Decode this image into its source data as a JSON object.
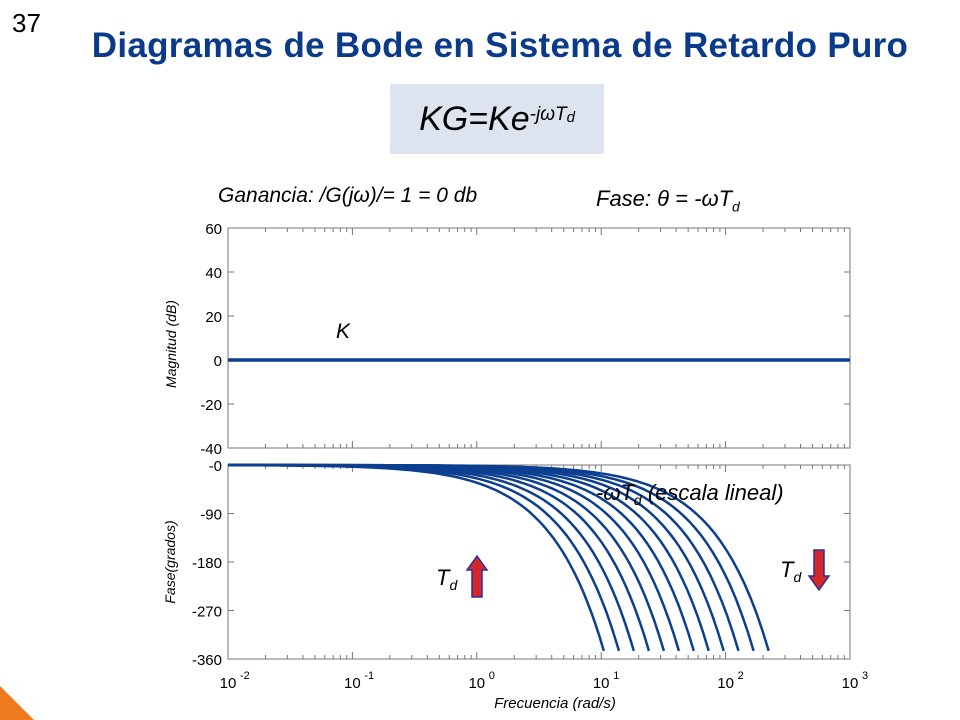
{
  "slide": {
    "number": "37",
    "title": "Diagramas de Bode en Sistema de Retardo Puro",
    "formula": {
      "base": "KG=Ke",
      "exponent": "-jωT",
      "exponent_sub": "d"
    },
    "gain_caption": "Ganancia: /G(jω)/= 1 = 0 db",
    "phase_caption": {
      "text": "Fase: θ = -ωT",
      "sub": "d"
    }
  },
  "colors": {
    "curve": "#0d3f91",
    "arrow_fill": "#d7262a",
    "arrow_stroke": "#2a2f9a",
    "title": "#0a3a8a",
    "formula_bg": "#dde4f0",
    "corner": "#f07a1e"
  },
  "chart_data": [
    {
      "type": "line",
      "scale": "log-x",
      "ylabel": "Magnitud (dB)",
      "xlim": [
        0.01,
        1000
      ],
      "ylim": [
        -40,
        60
      ],
      "y_ticks": [
        "60",
        "40",
        "20",
        "0",
        "-20",
        "-40"
      ],
      "series": [
        {
          "name": "K",
          "x": [
            0.01,
            1000
          ],
          "y": [
            0,
            0
          ]
        }
      ],
      "annotations": [
        "K"
      ]
    },
    {
      "type": "line",
      "scale": "log-x",
      "xlabel": "Frecuencia (rad/s)",
      "ylabel": "Fase(grados)",
      "xlim": [
        0.01,
        1000
      ],
      "ylim": [
        -360,
        0
      ],
      "y_ticks": [
        "-0",
        "-90",
        "-180",
        "-270",
        "-360"
      ],
      "x_ticks": [
        {
          "base": "10",
          "exp": "-2"
        },
        {
          "base": "10",
          "exp": "-1"
        },
        {
          "base": "10",
          "exp": "0"
        },
        {
          "base": "10",
          "exp": "1"
        },
        {
          "base": "10",
          "exp": "2"
        },
        {
          "base": "10",
          "exp": "3"
        }
      ],
      "phase_end_deg": -345,
      "curve_end_frequencies": [
        10.5,
        13.9,
        18.3,
        24.2,
        31.9,
        42.1,
        55.5,
        73.2,
        96.6,
        127,
        168,
        222
      ],
      "annotations": {
        "linear_label": {
          "text": "-ωT",
          "sub": "d",
          "rest": " (escala lineal)"
        },
        "td_up": {
          "text": "T",
          "sub": "d"
        },
        "td_down": {
          "text": "T",
          "sub": "d"
        }
      }
    }
  ]
}
